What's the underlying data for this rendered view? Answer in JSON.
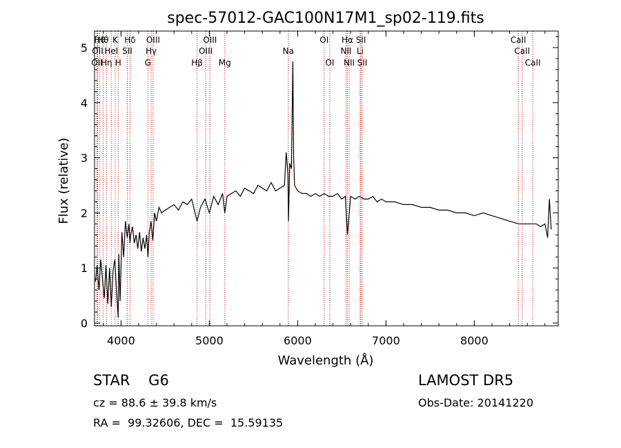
{
  "chart_data": {
    "type": "line",
    "title": "spec-57012-GAC100N17M1_sp02-119.fits",
    "xlabel": "Wavelength (Å)",
    "ylabel": "Flux (relative)",
    "xlim": [
      3700,
      8950
    ],
    "ylim": [
      -0.05,
      5.3
    ],
    "xticks": [
      4000,
      5000,
      6000,
      7000,
      8000
    ],
    "yticks": [
      0,
      1,
      2,
      3,
      4,
      5
    ],
    "grid": false,
    "line_color": "#000000",
    "marker_color": "#c00000",
    "series": [
      {
        "x": [
          3710,
          3730,
          3750,
          3770,
          3790,
          3810,
          3830,
          3850,
          3870,
          3890,
          3910,
          3930,
          3950,
          3968,
          3975,
          3990,
          4010,
          4030,
          4050,
          4070,
          4090,
          4101,
          4110,
          4130,
          4150,
          4170,
          4190,
          4210,
          4230,
          4250,
          4270,
          4290,
          4305,
          4320,
          4340,
          4360,
          4380,
          4400,
          4430,
          4460,
          4500,
          4550,
          4600,
          4650,
          4700,
          4750,
          4800,
          4861,
          4900,
          4950,
          5000,
          5050,
          5100,
          5150,
          5175,
          5200,
          5250,
          5300,
          5350,
          5400,
          5450,
          5500,
          5550,
          5600,
          5650,
          5700,
          5750,
          5800,
          5850,
          5870,
          5890,
          5896,
          5910,
          5930,
          5945,
          5955,
          5965,
          6000,
          6050,
          6100,
          6150,
          6200,
          6250,
          6300,
          6350,
          6400,
          6450,
          6500,
          6540,
          6563,
          6600,
          6650,
          6700,
          6750,
          6800,
          6850,
          6900,
          6950,
          7000,
          7100,
          7200,
          7300,
          7400,
          7500,
          7600,
          7700,
          7800,
          7900,
          8000,
          8100,
          8200,
          8300,
          8400,
          8500,
          8600,
          8700,
          8750,
          8800,
          8830,
          8850,
          8870
        ],
        "y": [
          0.75,
          1.05,
          0.6,
          1.15,
          0.8,
          0.45,
          1.05,
          0.35,
          1.0,
          0.3,
          0.95,
          1.15,
          0.55,
          0.1,
          1.25,
          0.4,
          1.65,
          1.2,
          1.85,
          1.55,
          1.8,
          1.45,
          1.6,
          1.75,
          1.45,
          1.6,
          1.35,
          1.65,
          1.3,
          1.55,
          1.35,
          1.6,
          1.2,
          1.65,
          1.85,
          1.5,
          2.0,
          1.85,
          2.1,
          2.0,
          2.05,
          2.1,
          2.15,
          2.05,
          2.2,
          2.15,
          2.25,
          1.85,
          2.1,
          2.25,
          2.0,
          2.3,
          2.15,
          2.35,
          2.0,
          2.3,
          2.35,
          2.4,
          2.3,
          2.45,
          2.4,
          2.35,
          2.5,
          2.45,
          2.4,
          2.55,
          2.4,
          2.45,
          2.5,
          3.1,
          2.7,
          1.85,
          2.9,
          2.8,
          4.75,
          3.0,
          2.5,
          2.4,
          2.35,
          2.35,
          2.3,
          2.35,
          2.3,
          2.35,
          2.3,
          2.3,
          2.35,
          2.25,
          2.3,
          1.6,
          2.3,
          2.25,
          2.3,
          2.25,
          2.25,
          2.3,
          2.2,
          2.25,
          2.2,
          2.2,
          2.15,
          2.15,
          2.1,
          2.1,
          2.05,
          2.05,
          2.0,
          2.0,
          1.95,
          2.0,
          1.95,
          1.9,
          1.85,
          1.8,
          1.8,
          1.8,
          1.75,
          1.8,
          1.55,
          2.25,
          1.7
        ]
      }
    ],
    "lines": [
      {
        "wave": 3727,
        "labels": [
          "OII"
        ],
        "row": 2
      },
      {
        "wave": 3735,
        "labels": [
          "OII"
        ],
        "row": 1
      },
      {
        "wave": 3760,
        "labels": [
          "Hθ"
        ],
        "row": 0
      },
      {
        "wave": 3797,
        "labels": [
          "Hθ"
        ],
        "row": 0
      },
      {
        "wave": 3835,
        "labels": [
          "Hη"
        ],
        "row": 2
      },
      {
        "wave": 3889,
        "labels": [
          "HeI"
        ],
        "row": 1
      },
      {
        "wave": 3934,
        "labels": [
          "K"
        ],
        "row": 0
      },
      {
        "wave": 3968,
        "labels": [
          "H"
        ],
        "row": 2
      },
      {
        "wave": 4071,
        "labels": [
          "SII"
        ],
        "row": 1
      },
      {
        "wave": 4102,
        "labels": [
          "Hδ"
        ],
        "row": 0
      },
      {
        "wave": 4304,
        "labels": [
          "G"
        ],
        "row": 2
      },
      {
        "wave": 4341,
        "labels": [
          "Hγ"
        ],
        "row": 1
      },
      {
        "wave": 4363,
        "labels": [
          "OIII"
        ],
        "row": 0
      },
      {
        "wave": 4861,
        "labels": [
          "Hβ"
        ],
        "row": 2
      },
      {
        "wave": 4959,
        "labels": [
          "OIII"
        ],
        "row": 1
      },
      {
        "wave": 5007,
        "labels": [
          "OIII"
        ],
        "row": 0
      },
      {
        "wave": 5175,
        "labels": [
          "Mg"
        ],
        "row": 2
      },
      {
        "wave": 5894,
        "labels": [
          "Na"
        ],
        "row": 1
      },
      {
        "wave": 6300,
        "labels": [
          "OI"
        ],
        "row": 0
      },
      {
        "wave": 6364,
        "labels": [
          "OI"
        ],
        "row": 2
      },
      {
        "wave": 6548,
        "labels": [
          "NII"
        ],
        "row": 1
      },
      {
        "wave": 6563,
        "labels": [
          "Hα"
        ],
        "row": 0
      },
      {
        "wave": 6583,
        "labels": [
          "NII"
        ],
        "row": 2
      },
      {
        "wave": 6707,
        "labels": [
          "Li"
        ],
        "row": 1
      },
      {
        "wave": 6716,
        "labels": [
          "SII"
        ],
        "row": 0
      },
      {
        "wave": 6731,
        "labels": [
          "SII"
        ],
        "row": 2
      },
      {
        "wave": 8498,
        "labels": [
          "CaII"
        ],
        "row": 0
      },
      {
        "wave": 8542,
        "labels": [
          "CaII"
        ],
        "row": 1
      },
      {
        "wave": 8662,
        "labels": [
          "CaII"
        ],
        "row": 2
      }
    ]
  },
  "info": {
    "class_label": "STAR    G6",
    "survey": "LAMOST DR5",
    "redshift": "cz = 88.6 ± 39.8 km/s",
    "obs_date": "Obs-Date: 20141220",
    "coords": "RA =  99.32606, DEC =  15.59135"
  }
}
